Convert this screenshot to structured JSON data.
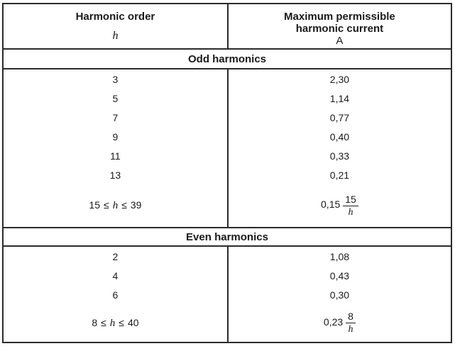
{
  "table": {
    "header": {
      "harmonic_order_title": "Harmonic order",
      "harmonic_order_symbol": "h",
      "max_current_title": "Maximum permissible harmonic current",
      "max_current_unit": "A"
    },
    "odd": {
      "section_title": "Odd harmonics",
      "rows": [
        {
          "order": "3",
          "current": "2,30"
        },
        {
          "order": "5",
          "current": "1,14"
        },
        {
          "order": "7",
          "current": "0,77"
        },
        {
          "order": "9",
          "current": "0,40"
        },
        {
          "order": "11",
          "current": "0,33"
        },
        {
          "order": "13",
          "current": "0,21"
        }
      ],
      "range_row": {
        "min": "15",
        "le1": "≤",
        "symbol": "h",
        "le2": "≤",
        "max": "39",
        "coefficient": "0,15",
        "numerator": "15",
        "denominator": "h"
      }
    },
    "even": {
      "section_title": "Even harmonics",
      "rows": [
        {
          "order": "2",
          "current": "1,08"
        },
        {
          "order": "4",
          "current": "0,43"
        },
        {
          "order": "6",
          "current": "0,30"
        }
      ],
      "range_row": {
        "min": "8",
        "le1": "≤",
        "symbol": "h",
        "le2": "≤",
        "max": "40",
        "coefficient": "0,23",
        "numerator": "8",
        "denominator": "h"
      }
    }
  }
}
